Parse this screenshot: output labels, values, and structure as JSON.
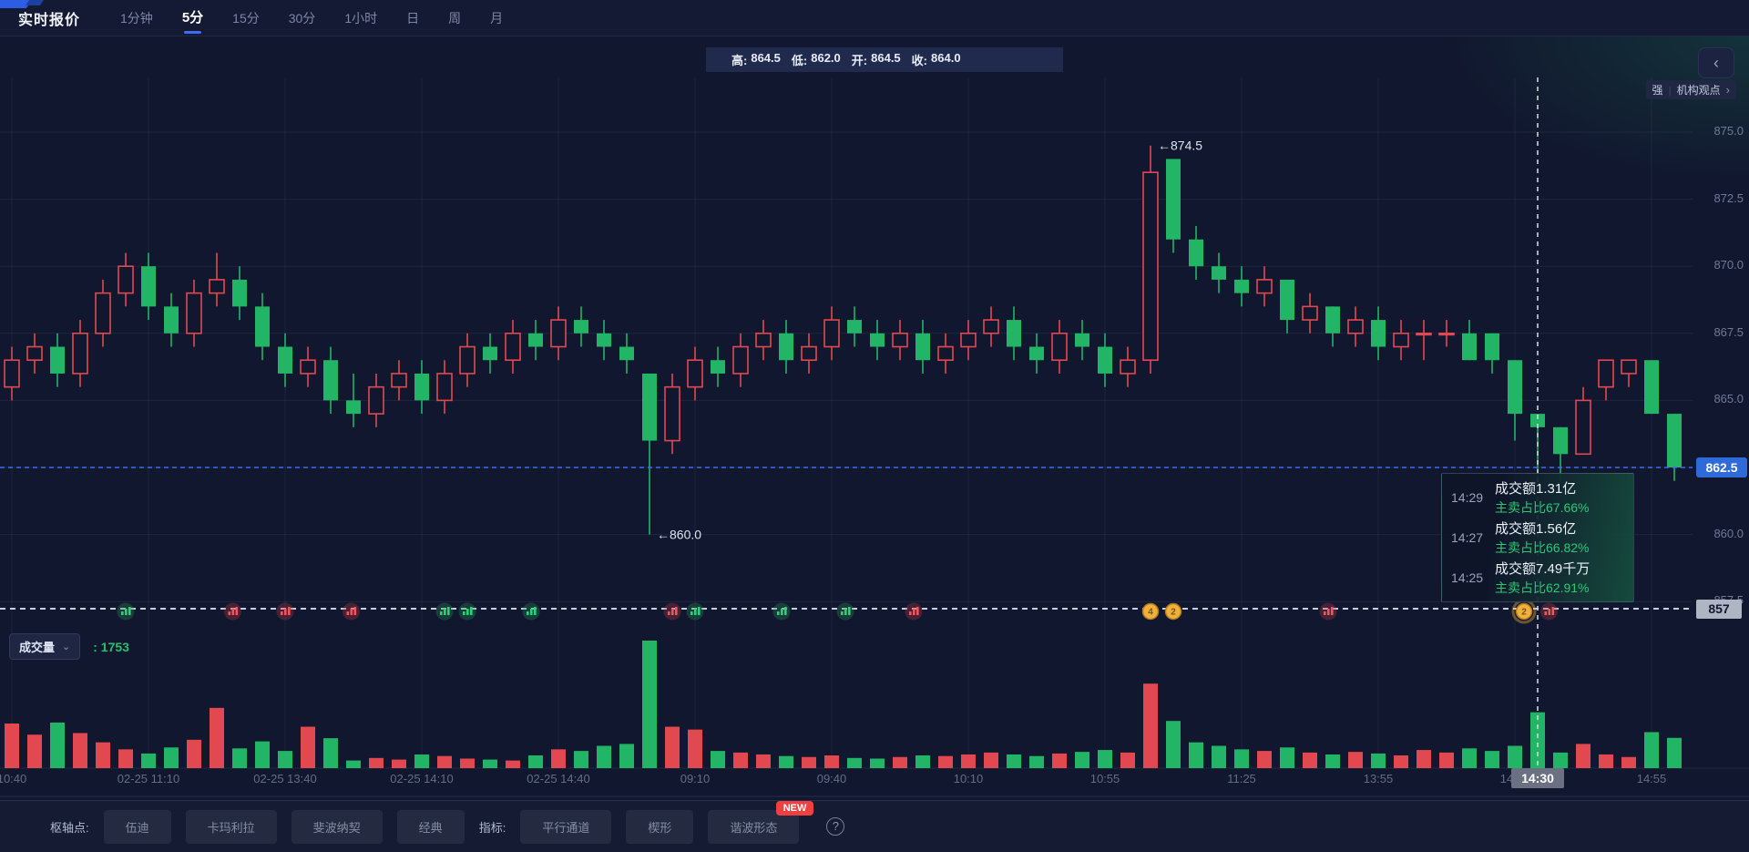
{
  "header": {
    "title": "实时报价",
    "tabs": [
      {
        "label": "1分钟",
        "active": false
      },
      {
        "label": "5分",
        "active": true
      },
      {
        "label": "15分",
        "active": false
      },
      {
        "label": "30分",
        "active": false
      },
      {
        "label": "1小时",
        "active": false
      },
      {
        "label": "日",
        "active": false
      },
      {
        "label": "周",
        "active": false
      },
      {
        "label": "月",
        "active": false
      }
    ]
  },
  "ohlc_bar": {
    "parts": [
      {
        "label": "高:",
        "value": "864.5"
      },
      {
        "label": "低:",
        "value": "862.0"
      },
      {
        "label": "开:",
        "value": "864.5"
      },
      {
        "label": "收:",
        "value": "864.0"
      }
    ]
  },
  "side": {
    "collapse_icon": "‹",
    "strength_badge": "强",
    "institution_link": "机构观点",
    "institution_arrow": "›"
  },
  "price_axis": {
    "labels": [
      "875.0",
      "872.5",
      "870.0",
      "867.5",
      "865.0",
      "860.0",
      "857.5"
    ],
    "last_price": "862.5",
    "crosshair_price": "857"
  },
  "volume_header": {
    "name": "成交量",
    "chevron": "⌄",
    "value": ": 1753"
  },
  "time_axis": {
    "crosshair_time": "14:30"
  },
  "tooltip": {
    "rows": [
      {
        "time": "14:29",
        "amount": "成交额1.31亿",
        "ratio": "主卖占比67.66%"
      },
      {
        "time": "14:27",
        "amount": "成交额1.56亿",
        "ratio": "主卖占比66.82%"
      },
      {
        "time": "14:25",
        "amount": "成交额7.49千万",
        "ratio": "主卖占比62.91%"
      }
    ]
  },
  "toolbar": {
    "pivot_label": "枢轴点:",
    "pivot_buttons": [
      "伍迪",
      "卡玛利拉",
      "斐波纳契",
      "经典"
    ],
    "indicator_label": "指标:",
    "indicator_buttons": [
      "平行通道",
      "楔形",
      "谐波形态"
    ],
    "new_badge": "NEW",
    "help_icon": "?"
  },
  "chart_data": {
    "type": "candlestick_with_volume",
    "interval": "5分",
    "up_color": "#e2484f",
    "down_color": "#21b565",
    "price_gridlines": [
      875.0,
      872.5,
      870.0,
      867.5,
      865.0,
      862.5,
      860.0,
      857.5
    ],
    "last_price": 862.5,
    "crosshair": {
      "index": 68,
      "time": "14:30",
      "price_label": "857"
    },
    "time_labels": [
      {
        "index": 1,
        "text": "10:40"
      },
      {
        "index": 7,
        "text": "02-25 11:10"
      },
      {
        "index": 13,
        "text": "02-25 13:40"
      },
      {
        "index": 19,
        "text": "02-25 14:10"
      },
      {
        "index": 25,
        "text": "02-25 14:40"
      },
      {
        "index": 31,
        "text": "09:10"
      },
      {
        "index": 37,
        "text": "09:40"
      },
      {
        "index": 43,
        "text": "10:10"
      },
      {
        "index": 49,
        "text": "10:55"
      },
      {
        "index": 55,
        "text": "11:25"
      },
      {
        "index": 61,
        "text": "13:55"
      },
      {
        "index": 67,
        "text": "14:25"
      },
      {
        "index": 73,
        "text": "14:55"
      }
    ],
    "annotations": [
      {
        "index": 51,
        "price": 874.5,
        "text": "←874.5",
        "position": "high"
      },
      {
        "index": 29,
        "price": 860.0,
        "text": "←860.0",
        "position": "low"
      }
    ],
    "signal_markers": [
      {
        "pos": 6,
        "kind": "vol",
        "color": "green"
      },
      {
        "pos": 10.7,
        "kind": "vol",
        "color": "red"
      },
      {
        "pos": 13,
        "kind": "vol",
        "color": "red"
      },
      {
        "pos": 15.9,
        "kind": "vol",
        "color": "red"
      },
      {
        "pos": 20,
        "kind": "vol",
        "color": "green"
      },
      {
        "pos": 21,
        "kind": "vol",
        "color": "green"
      },
      {
        "pos": 23.8,
        "kind": "vol",
        "color": "green"
      },
      {
        "pos": 30,
        "kind": "vol",
        "color": "red"
      },
      {
        "pos": 31,
        "kind": "vol",
        "color": "green"
      },
      {
        "pos": 34.8,
        "kind": "vol",
        "color": "green"
      },
      {
        "pos": 37.6,
        "kind": "vol",
        "color": "green"
      },
      {
        "pos": 40.6,
        "kind": "vol",
        "color": "red"
      },
      {
        "pos": 51,
        "kind": "coin",
        "label": "4"
      },
      {
        "pos": 52,
        "kind": "coin",
        "label": "2"
      },
      {
        "pos": 58.8,
        "kind": "vol",
        "color": "red"
      },
      {
        "pos": 67.4,
        "kind": "coin",
        "label": "2",
        "highlight": true
      },
      {
        "pos": 68.5,
        "kind": "vol",
        "color": "red"
      }
    ],
    "times": [
      "10:35",
      "10:40",
      "10:45",
      "10:50",
      "10:55",
      "11:00",
      "11:05",
      "11:10",
      "11:15",
      "11:20",
      "11:25",
      "13:30",
      "13:35",
      "13:40",
      "13:45",
      "13:50",
      "13:55",
      "14:00",
      "14:05",
      "14:10",
      "14:15",
      "14:20",
      "14:25",
      "14:30",
      "14:35",
      "14:40",
      "14:45",
      "14:50",
      "14:55",
      "09:00",
      "09:05",
      "09:10",
      "09:15",
      "09:20",
      "09:25",
      "09:30",
      "09:35",
      "09:40",
      "09:45",
      "09:50",
      "09:55",
      "10:00",
      "10:05",
      "10:10",
      "10:15",
      "10:35",
      "10:40",
      "10:45",
      "10:50",
      "10:55",
      "11:00",
      "11:05",
      "11:10",
      "11:15",
      "11:20",
      "11:25",
      "13:30",
      "13:35",
      "13:40",
      "13:45",
      "13:50",
      "13:55",
      "14:00",
      "14:05",
      "14:10",
      "14:15",
      "14:20",
      "14:25",
      "14:30",
      "14:35",
      "14:40",
      "14:45",
      "14:50",
      "14:55",
      "15:00"
    ],
    "candles": [
      [
        864.5,
        866,
        864,
        865.5
      ],
      [
        865.5,
        867,
        865,
        866.5
      ],
      [
        866.5,
        867.5,
        866,
        867
      ],
      [
        867,
        867.5,
        865.5,
        866
      ],
      [
        866,
        868,
        865.5,
        867.5
      ],
      [
        867.5,
        869.5,
        867,
        869
      ],
      [
        869,
        870.5,
        868.5,
        870
      ],
      [
        870,
        870.5,
        868,
        868.5
      ],
      [
        868.5,
        869,
        867,
        867.5
      ],
      [
        867.5,
        869.5,
        867,
        869
      ],
      [
        869,
        870.5,
        868.5,
        869.5
      ],
      [
        869.5,
        870,
        868,
        868.5
      ],
      [
        868.5,
        869,
        866.5,
        867
      ],
      [
        867,
        867.5,
        865.5,
        866
      ],
      [
        866,
        867,
        865.5,
        866.5
      ],
      [
        866.5,
        867,
        864.5,
        865
      ],
      [
        865,
        866,
        864,
        864.5
      ],
      [
        864.5,
        866,
        864,
        865.5
      ],
      [
        865.5,
        866.5,
        865,
        866
      ],
      [
        866,
        866.5,
        864.5,
        865
      ],
      [
        865,
        866.5,
        864.5,
        866
      ],
      [
        866,
        867.5,
        865.5,
        867
      ],
      [
        867,
        867.5,
        866,
        866.5
      ],
      [
        866.5,
        868,
        866,
        867.5
      ],
      [
        867.5,
        868,
        866.5,
        867
      ],
      [
        867,
        868.5,
        866.5,
        868
      ],
      [
        868,
        868.5,
        867,
        867.5
      ],
      [
        867.5,
        868,
        866.5,
        867
      ],
      [
        867,
        867.5,
        866,
        866.5
      ],
      [
        866,
        866,
        860,
        863.5
      ],
      [
        863.5,
        866,
        863,
        865.5
      ],
      [
        865.5,
        867,
        865,
        866.5
      ],
      [
        866.5,
        867,
        865.5,
        866
      ],
      [
        866,
        867.5,
        865.5,
        867
      ],
      [
        867,
        868,
        866.5,
        867.5
      ],
      [
        867.5,
        868,
        866,
        866.5
      ],
      [
        866.5,
        867.5,
        866,
        867
      ],
      [
        867,
        868.5,
        866.5,
        868
      ],
      [
        868,
        868.5,
        867,
        867.5
      ],
      [
        867.5,
        868,
        866.5,
        867
      ],
      [
        867,
        868,
        866.5,
        867.5
      ],
      [
        867.5,
        868,
        866,
        866.5
      ],
      [
        866.5,
        867.5,
        866,
        867
      ],
      [
        867,
        868,
        866.5,
        867.5
      ],
      [
        867.5,
        868.5,
        867,
        868
      ],
      [
        868,
        868.5,
        866.5,
        867
      ],
      [
        867,
        867.5,
        866,
        866.5
      ],
      [
        866.5,
        868,
        866,
        867.5
      ],
      [
        867.5,
        868,
        866.5,
        867
      ],
      [
        867,
        867.5,
        865.5,
        866
      ],
      [
        866,
        867,
        865.5,
        866.5
      ],
      [
        866.5,
        874.5,
        866,
        873.5
      ],
      [
        874,
        874,
        870.5,
        871
      ],
      [
        871,
        871.5,
        869.5,
        870
      ],
      [
        870,
        870.5,
        869,
        869.5
      ],
      [
        869.5,
        870,
        868.5,
        869
      ],
      [
        869,
        870,
        868.5,
        869.5
      ],
      [
        869.5,
        869.5,
        867.5,
        868
      ],
      [
        868,
        869,
        867.5,
        868.5
      ],
      [
        868.5,
        868.5,
        867,
        867.5
      ],
      [
        867.5,
        868.5,
        867,
        868
      ],
      [
        868,
        868.5,
        866.5,
        867
      ],
      [
        867,
        868,
        866.5,
        867.5
      ],
      [
        867.5,
        868,
        866.5,
        867.5
      ],
      [
        867.5,
        868,
        867,
        867.5
      ],
      [
        867.5,
        868,
        866.5,
        866.5
      ],
      [
        867.5,
        867.5,
        866,
        866.5
      ],
      [
        866.5,
        866.5,
        863.5,
        864.5
      ],
      [
        864.5,
        864.5,
        862,
        864
      ],
      [
        864,
        864,
        862,
        863
      ],
      [
        863,
        865.5,
        863,
        865
      ],
      [
        865.5,
        866.5,
        865,
        866.5
      ],
      [
        866,
        866.5,
        865.5,
        866.5
      ],
      [
        866.5,
        866.5,
        864.5,
        864.5
      ],
      [
        864.5,
        864.5,
        862,
        862.5
      ]
    ],
    "volumes": [
      800,
      1400,
      1050,
      1430,
      1100,
      810,
      590,
      460,
      650,
      890,
      1890,
      620,
      840,
      540,
      1300,
      940,
      240,
      320,
      270,
      430,
      380,
      300,
      270,
      240,
      400,
      590,
      540,
      700,
      760,
      4000,
      1300,
      1210,
      540,
      490,
      430,
      380,
      350,
      400,
      320,
      300,
      350,
      400,
      380,
      430,
      490,
      430,
      380,
      460,
      510,
      570,
      490,
      2650,
      1480,
      810,
      700,
      590,
      540,
      650,
      490,
      430,
      510,
      460,
      400,
      570,
      490,
      620,
      540,
      700,
      1753,
      490,
      760,
      430,
      350,
      1130,
      950
    ]
  }
}
